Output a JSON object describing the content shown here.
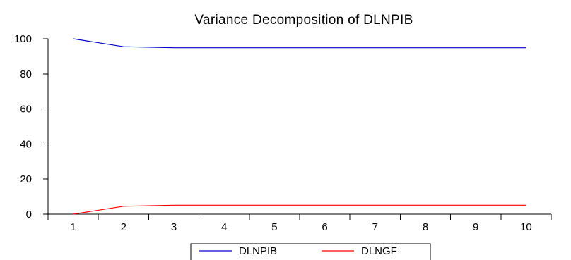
{
  "chart_data": {
    "type": "line",
    "title": "Variance Decomposition of DLNPIB",
    "xlabel": "",
    "ylabel": "",
    "x": [
      1,
      2,
      3,
      4,
      5,
      6,
      7,
      8,
      9,
      10
    ],
    "xlim": [
      0.5,
      10.5
    ],
    "ylim": [
      0,
      100
    ],
    "yticks": [
      0,
      20,
      40,
      60,
      80,
      100
    ],
    "grid": false,
    "legend_position": "bottom",
    "series": [
      {
        "name": "DLNPIB",
        "color": "#0000cc",
        "values": [
          100,
          95.5,
          94.9,
          94.9,
          94.9,
          94.9,
          94.9,
          94.9,
          94.9,
          94.9
        ]
      },
      {
        "name": "DLNGF",
        "color": "#ff0000",
        "values": [
          0,
          4.5,
          5.1,
          5.1,
          5.1,
          5.1,
          5.1,
          5.1,
          5.1,
          5.1
        ]
      }
    ]
  }
}
